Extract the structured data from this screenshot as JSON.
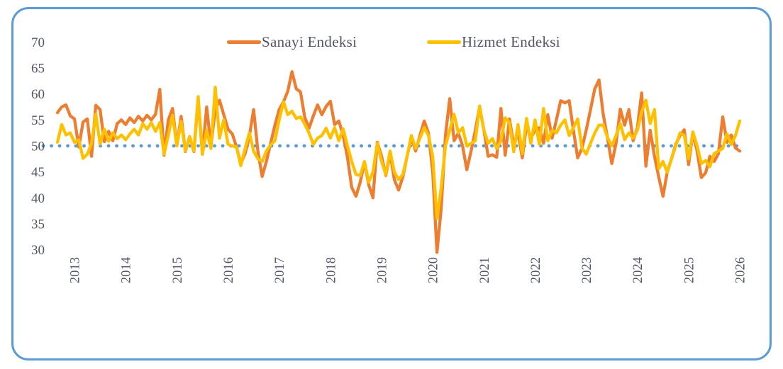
{
  "figure": {
    "border_color": "#5B9BD5",
    "background": "#FFFFFF",
    "text_color": "#515565"
  },
  "legend": [
    {
      "label": "Sanayi Endeksi",
      "color": "#ED7D31"
    },
    {
      "label": "Hizmet Endeksi",
      "color": "#FFC000"
    }
  ],
  "chart_data": {
    "type": "line",
    "title": "",
    "xlabel": "",
    "ylabel": "",
    "grid": "off",
    "legend_position": "top",
    "x_unit": "monthly",
    "x_start": "2012-09",
    "x_end": "2026-01",
    "x_tick_labels": [
      "2013",
      "2014",
      "2015",
      "2016",
      "2017",
      "2018",
      "2019",
      "2020",
      "2021",
      "2022",
      "2023",
      "2024",
      "2025",
      "2026"
    ],
    "x_tick_first_index": 4,
    "x_tick_step_months": 12,
    "y_ticks": [
      70,
      65,
      60,
      55,
      50,
      45,
      40,
      35,
      30
    ],
    "ylim": [
      28,
      71
    ],
    "reference_line": {
      "value": 50,
      "style": "dotted",
      "color": "#5B9BD5"
    },
    "series": [
      {
        "name": "Sanayi Endeksi",
        "color": "#ED7D31",
        "values": [
          56.4,
          57.5,
          57.9,
          55.8,
          55.2,
          49.8,
          54.6,
          55.2,
          48.0,
          57.8,
          57.0,
          50.8,
          52.8,
          51.0,
          54.3,
          55.0,
          54.1,
          55.4,
          54.5,
          55.7,
          54.8,
          55.9,
          55.0,
          56.1,
          60.9,
          48.2,
          55.0,
          57.2,
          50.0,
          55.7,
          48.9,
          51.8,
          48.9,
          58.9,
          48.4,
          57.5,
          50.0,
          57.0,
          58.8,
          56.0,
          53.2,
          52.3,
          49.8,
          46.6,
          48.5,
          51.9,
          57.0,
          49.0,
          44.1,
          47.0,
          50.5,
          54.0,
          57.0,
          58.5,
          60.5,
          64.3,
          61.0,
          60.4,
          55.5,
          53.4,
          55.8,
          57.9,
          56.0,
          57.6,
          58.6,
          54.1,
          54.8,
          52.0,
          47.8,
          42.0,
          40.3,
          43.0,
          46.9,
          42.5,
          40.0,
          50.7,
          48.0,
          44.3,
          48.6,
          43.5,
          41.5,
          44.0,
          48.0,
          51.6,
          49.0,
          52.0,
          54.8,
          52.5,
          45.0,
          29.5,
          38.0,
          52.0,
          59.1,
          51.0,
          52.5,
          50.0,
          45.4,
          49.0,
          53.0,
          57.5,
          53.0,
          48.0,
          48.3,
          47.8,
          57.2,
          48.2,
          55.2,
          50.2,
          52.5,
          47.7,
          54.0,
          51.5,
          53.0,
          53.5,
          50.5,
          56.0,
          51.5,
          55.0,
          58.7,
          58.3,
          58.7,
          53.0,
          47.7,
          49.5,
          53.0,
          57.0,
          61.0,
          62.7,
          56.0,
          51.5,
          46.6,
          50.5,
          57.1,
          54.0,
          57.0,
          51.0,
          53.5,
          60.2,
          46.1,
          53.0,
          48.0,
          44.0,
          40.3,
          45.0,
          47.5,
          50.3,
          52.0,
          53.1,
          46.4,
          52.5,
          49.0,
          43.9,
          44.8,
          48.0,
          47.0,
          48.5,
          55.6,
          50.7,
          52.1,
          49.6,
          49.0
        ]
      },
      {
        "name": "Hizmet Endeksi",
        "color": "#FFC000",
        "values": [
          50.7,
          54.1,
          52.1,
          52.5,
          50.7,
          51.2,
          47.6,
          48.4,
          50.5,
          56.1,
          50.4,
          53.2,
          50.9,
          52.5,
          51.4,
          52.1,
          51.2,
          52.3,
          53.2,
          52.1,
          54.3,
          53.2,
          54.5,
          52.8,
          54.5,
          48.4,
          52.0,
          55.9,
          50.0,
          54.7,
          49.0,
          51.8,
          49.0,
          59.5,
          48.4,
          53.0,
          49.5,
          61.3,
          51.5,
          55.0,
          50.3,
          50.0,
          49.8,
          46.2,
          49.5,
          52.5,
          49.0,
          47.5,
          47.0,
          49.0,
          50.2,
          51.0,
          55.0,
          58.5,
          56.0,
          56.7,
          55.3,
          55.6,
          54.2,
          52.5,
          50.3,
          51.5,
          52.0,
          53.4,
          51.5,
          53.5,
          51.0,
          53.3,
          50.0,
          47.0,
          44.5,
          44.3,
          47.0,
          43.0,
          45.0,
          50.5,
          47.0,
          44.5,
          49.0,
          45.0,
          43.5,
          44.5,
          48.0,
          52.0,
          49.5,
          51.5,
          53.5,
          52.0,
          48.0,
          36.0,
          42.0,
          50.0,
          53.0,
          56.1,
          52.5,
          53.5,
          50.0,
          50.5,
          51.0,
          57.7,
          53.0,
          50.5,
          51.4,
          49.5,
          51.0,
          55.4,
          54.5,
          48.9,
          54.1,
          48.5,
          55.3,
          50.5,
          55.0,
          50.3,
          57.2,
          51.0,
          53.0,
          52.5,
          54.0,
          55.0,
          52.0,
          53.5,
          55.2,
          49.6,
          48.4,
          50.5,
          52.5,
          54.0,
          54.0,
          51.6,
          50.0,
          52.0,
          54.3,
          51.2,
          52.5,
          51.5,
          53.0,
          56.5,
          58.8,
          54.3,
          57.0,
          45.6,
          47.0,
          44.9,
          47.5,
          50.0,
          52.5,
          52.0,
          47.5,
          52.7,
          50.0,
          46.6,
          47.2,
          46.0,
          48.5,
          49.0,
          49.5,
          52.3,
          50.3,
          52.0,
          54.8
        ]
      }
    ]
  }
}
